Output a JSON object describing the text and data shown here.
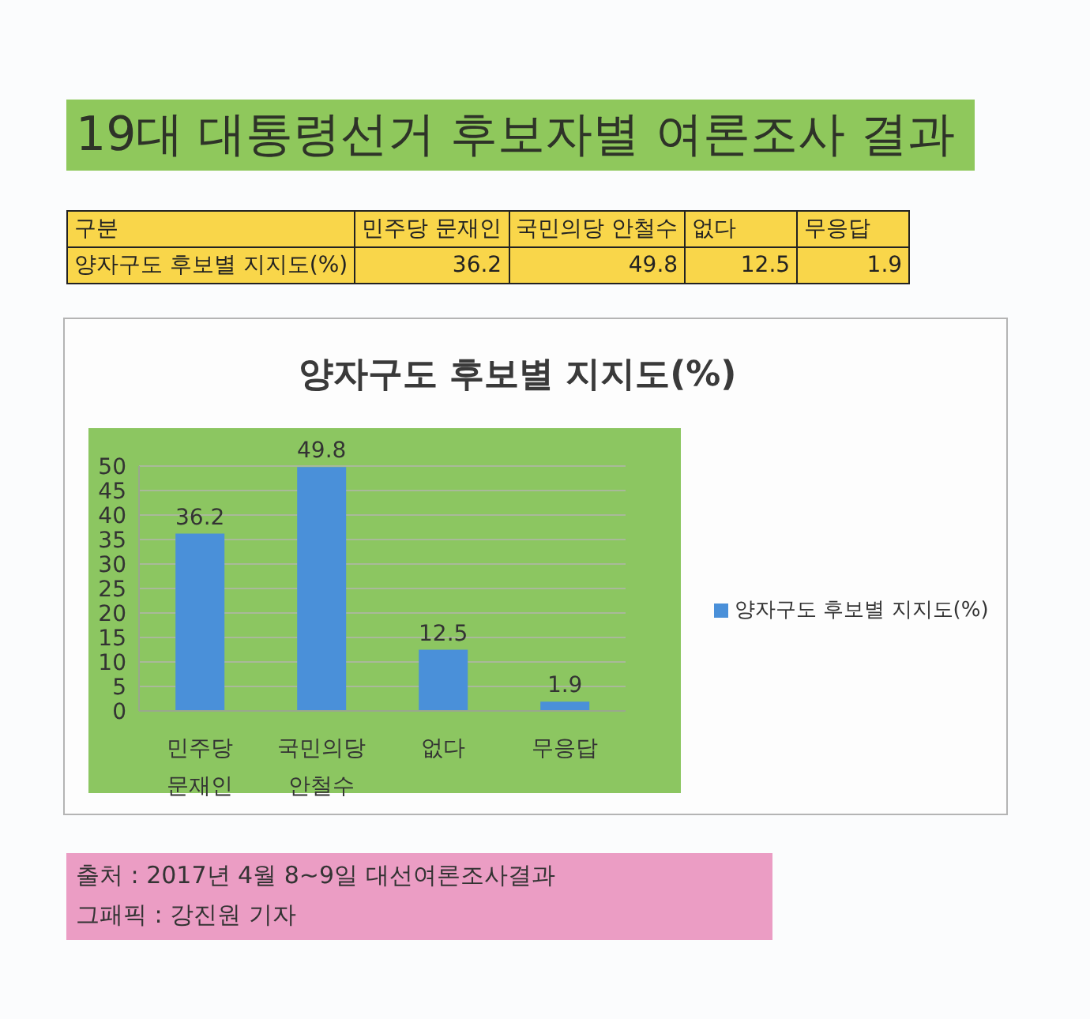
{
  "chart_data": [
    {
      "type": "other",
      "title": "19대 대통령선거 후보자별 여론조사 결과",
      "categories": [
        "민주당 문재인",
        "국민의당 안철수",
        "없다",
        "무응답"
      ],
      "series": [
        {
          "name": "양자구도 후보별 지지도(%)",
          "values": [
            36.2,
            49.8,
            12.5,
            1.9
          ]
        }
      ],
      "data_labels": true,
      "annotations": [
        "구분"
      ]
    },
    {
      "type": "bar",
      "title": "양자구도 후보별 지지도(%)",
      "categories": [
        "민주당 문재인",
        "국민의당 안철수",
        "없다",
        "무응답"
      ],
      "series": [
        {
          "name": "양자구도 후보별 지지도(%)",
          "color": "#4a90d9",
          "values": [
            36.2,
            49.8,
            12.5,
            1.9
          ]
        }
      ],
      "ylim": [
        0,
        50
      ],
      "yticks": [
        0,
        5,
        10,
        15,
        20,
        25,
        30,
        35,
        40,
        45,
        50
      ],
      "grid": "y",
      "legend": "right",
      "data_labels": true,
      "annotations": [
        "출처 : 2017년 4월 8~9일 대선여론조사결과",
        "그패픽 : 강진원 기자"
      ]
    }
  ]
}
